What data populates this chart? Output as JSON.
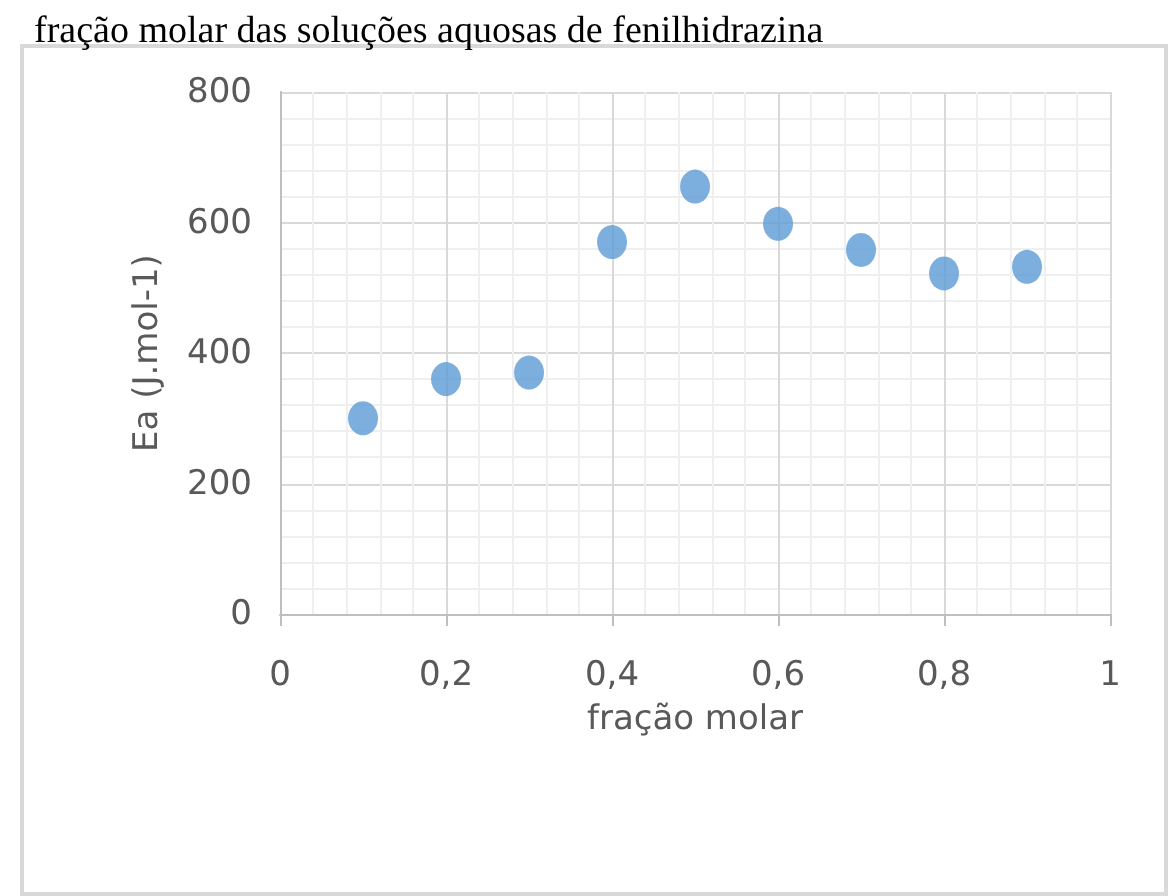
{
  "chart_data": {
    "type": "scatter",
    "title": "fração molar das soluções aquosas de fenilhidrazina",
    "xlabel": "fração molar",
    "ylabel": "Ea (J.mol-1)",
    "x": [
      0.1,
      0.2,
      0.3,
      0.4,
      0.5,
      0.6,
      0.7,
      0.8,
      0.9
    ],
    "series": [
      {
        "color": "#5b9bd5",
        "values": [
          300,
          360,
          370,
          570,
          655,
          598,
          558,
          522,
          532
        ]
      }
    ],
    "xlim": [
      0,
      1
    ],
    "xticks": [
      0,
      {
        "value": 0.2,
        "label": "0,2"
      },
      {
        "value": 0.4,
        "label": "0,4"
      },
      {
        "value": 0.6,
        "label": "0,6"
      },
      {
        "value": 0.8,
        "label": "0,8"
      },
      1
    ],
    "ylim": [
      0,
      800
    ],
    "yticks": [
      0,
      200,
      400,
      600,
      800
    ],
    "grid": true,
    "marker": "circle"
  }
}
